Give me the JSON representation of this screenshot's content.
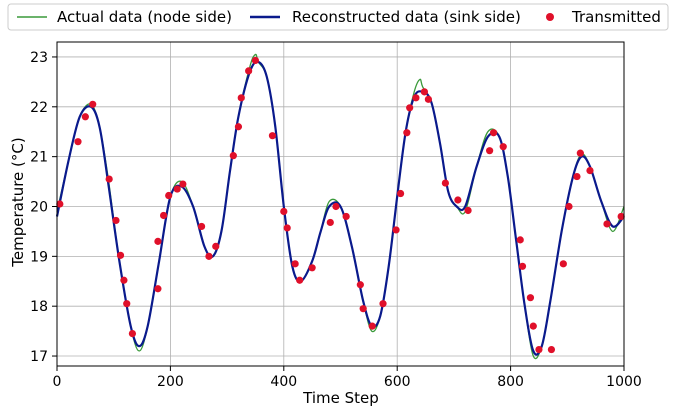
{
  "chart_data": {
    "type": "line",
    "xlabel": "Time Step",
    "ylabel": "Temperature (°C)",
    "xlim": [
      0,
      1000
    ],
    "ylim": [
      16.8,
      23.3
    ],
    "x_ticks": [
      0,
      200,
      400,
      600,
      800,
      1000
    ],
    "y_ticks": [
      17,
      18,
      19,
      20,
      21,
      22,
      23
    ],
    "grid": true,
    "legend_position": "top",
    "colors": {
      "actual": "#3a9a3a",
      "reconstructed": "#0a1a8c",
      "transmitted": "#e0102a"
    },
    "legend": [
      {
        "key": "actual",
        "label": "Actual data (node side)"
      },
      {
        "key": "reconstructed",
        "label": "Reconstructed data (sink side)"
      },
      {
        "key": "transmitted",
        "label": "Transmitted"
      }
    ],
    "series": [
      {
        "name": "Reconstructed data (sink side)",
        "style": "line",
        "x": [
          0,
          20,
          40,
          60,
          75,
          90,
          110,
          130,
          145,
          160,
          180,
          200,
          220,
          240,
          260,
          275,
          290,
          305,
          320,
          340,
          355,
          370,
          385,
          400,
          415,
          430,
          450,
          465,
          480,
          500,
          520,
          540,
          555,
          570,
          585,
          600,
          615,
          630,
          645,
          660,
          675,
          690,
          705,
          720,
          740,
          760,
          780,
          795,
          810,
          825,
          840,
          855,
          870,
          890,
          910,
          925,
          940,
          960,
          980,
          1000
        ],
        "y": [
          19.8,
          20.9,
          21.8,
          22.0,
          21.6,
          20.5,
          18.9,
          17.6,
          17.2,
          17.6,
          18.9,
          20.2,
          20.4,
          20.0,
          19.2,
          19.0,
          19.5,
          20.7,
          21.8,
          22.7,
          22.9,
          22.6,
          21.6,
          20.0,
          18.8,
          18.5,
          18.9,
          19.5,
          20.0,
          20.0,
          19.2,
          18.1,
          17.6,
          17.8,
          18.8,
          20.2,
          21.5,
          22.2,
          22.3,
          22.1,
          21.3,
          20.3,
          20.0,
          20.0,
          20.8,
          21.4,
          21.4,
          20.6,
          19.3,
          18.0,
          17.1,
          17.2,
          18.1,
          19.5,
          20.6,
          21.0,
          20.8,
          20.1,
          19.6,
          19.8
        ]
      },
      {
        "name": "Actual data (node side)",
        "style": "line",
        "x": [
          0,
          20,
          40,
          60,
          75,
          90,
          110,
          130,
          145,
          160,
          180,
          200,
          220,
          240,
          260,
          275,
          290,
          305,
          320,
          340,
          350,
          355,
          370,
          385,
          400,
          415,
          430,
          450,
          465,
          480,
          500,
          520,
          540,
          555,
          570,
          585,
          600,
          615,
          630,
          640,
          645,
          660,
          675,
          690,
          705,
          720,
          740,
          760,
          780,
          795,
          810,
          825,
          840,
          855,
          870,
          890,
          910,
          925,
          940,
          960,
          980,
          1000
        ],
        "y": [
          19.9,
          20.9,
          21.8,
          22.05,
          21.6,
          20.6,
          18.9,
          17.6,
          17.1,
          17.6,
          18.9,
          20.2,
          20.5,
          20.0,
          19.2,
          19.0,
          19.5,
          20.7,
          21.8,
          22.8,
          23.05,
          22.9,
          22.6,
          21.6,
          20.0,
          18.8,
          18.5,
          18.9,
          19.5,
          20.1,
          20.0,
          19.2,
          18.1,
          17.5,
          17.8,
          18.8,
          20.2,
          21.5,
          22.3,
          22.55,
          22.4,
          22.1,
          21.3,
          20.3,
          20.0,
          19.9,
          20.8,
          21.5,
          21.4,
          20.6,
          19.3,
          18.0,
          17.0,
          17.2,
          18.1,
          19.5,
          20.6,
          21.05,
          20.8,
          20.1,
          19.5,
          20.0
        ]
      },
      {
        "name": "Transmitted",
        "style": "points",
        "x": [
          5,
          37,
          50,
          63,
          92,
          104,
          112,
          118,
          123,
          133,
          178,
          178,
          188,
          197,
          212,
          222,
          255,
          268,
          280,
          311,
          320,
          325,
          338,
          350,
          380,
          400,
          406,
          420,
          428,
          450,
          482,
          492,
          510,
          535,
          540,
          556,
          575,
          598,
          606,
          617,
          622,
          633,
          648,
          655,
          685,
          707,
          725,
          763,
          770,
          787,
          817,
          821,
          835,
          840,
          850,
          872,
          893,
          903,
          917,
          923,
          940,
          970,
          995
        ],
        "y": [
          20.05,
          21.3,
          21.8,
          22.05,
          20.55,
          19.72,
          19.02,
          18.52,
          18.05,
          17.45,
          18.35,
          19.3,
          19.82,
          20.22,
          20.35,
          20.45,
          19.6,
          19.0,
          19.2,
          21.02,
          21.6,
          22.18,
          22.72,
          22.93,
          21.42,
          19.9,
          19.57,
          18.85,
          18.52,
          18.77,
          19.68,
          20.0,
          19.8,
          18.43,
          17.95,
          17.6,
          18.05,
          19.53,
          20.26,
          21.48,
          21.98,
          22.18,
          22.3,
          22.15,
          20.47,
          20.13,
          19.92,
          21.12,
          21.48,
          21.2,
          19.33,
          18.8,
          18.17,
          17.6,
          17.13,
          17.13,
          18.85,
          20.0,
          20.6,
          21.07,
          20.72,
          19.65,
          19.8
        ]
      }
    ]
  }
}
